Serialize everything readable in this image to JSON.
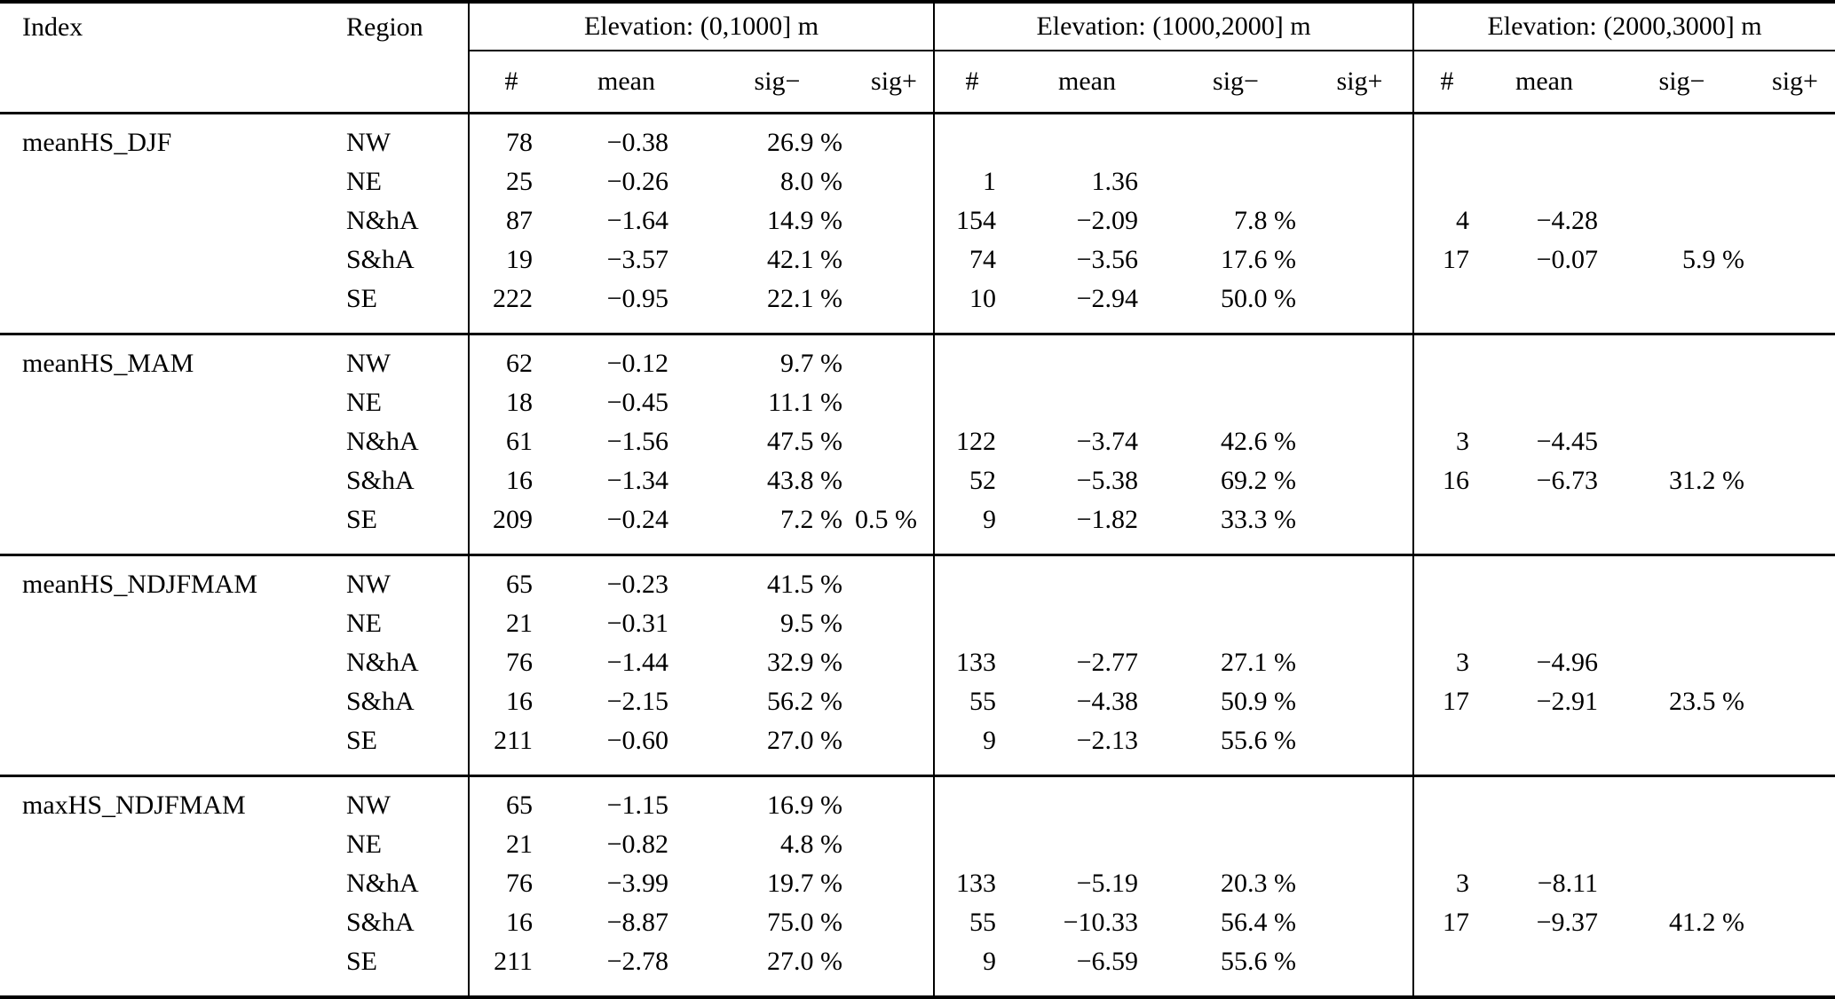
{
  "colors": {
    "background": "#ffffff",
    "text": "#000000",
    "rules": "#000000"
  },
  "table": {
    "headers": {
      "index": "Index",
      "region": "Region",
      "elevation_bands": [
        "Elevation: (0,1000] m",
        "Elevation: (1000,2000] m",
        "Elevation: (2000,3000] m"
      ],
      "sub": [
        "#",
        "mean",
        "sig−",
        "sig+"
      ]
    },
    "groups": [
      {
        "index": "meanHS_DJF",
        "rows": [
          {
            "region": "NW",
            "bands": [
              [
                "78",
                "−0.38",
                "26.9 %",
                ""
              ],
              [
                "",
                "",
                "",
                ""
              ],
              [
                "",
                "",
                "",
                ""
              ]
            ]
          },
          {
            "region": "NE",
            "bands": [
              [
                "25",
                "−0.26",
                "8.0 %",
                ""
              ],
              [
                "1",
                "1.36",
                "",
                ""
              ],
              [
                "",
                "",
                "",
                ""
              ]
            ]
          },
          {
            "region": "N&hA",
            "bands": [
              [
                "87",
                "−1.64",
                "14.9 %",
                ""
              ],
              [
                "154",
                "−2.09",
                "7.8 %",
                ""
              ],
              [
                "4",
                "−4.28",
                "",
                ""
              ]
            ]
          },
          {
            "region": "S&hA",
            "bands": [
              [
                "19",
                "−3.57",
                "42.1 %",
                ""
              ],
              [
                "74",
                "−3.56",
                "17.6 %",
                ""
              ],
              [
                "17",
                "−0.07",
                "5.9 %",
                ""
              ]
            ]
          },
          {
            "region": "SE",
            "bands": [
              [
                "222",
                "−0.95",
                "22.1 %",
                ""
              ],
              [
                "10",
                "−2.94",
                "50.0 %",
                ""
              ],
              [
                "",
                "",
                "",
                ""
              ]
            ]
          }
        ]
      },
      {
        "index": "meanHS_MAM",
        "rows": [
          {
            "region": "NW",
            "bands": [
              [
                "62",
                "−0.12",
                "9.7 %",
                ""
              ],
              [
                "",
                "",
                "",
                ""
              ],
              [
                "",
                "",
                "",
                ""
              ]
            ]
          },
          {
            "region": "NE",
            "bands": [
              [
                "18",
                "−0.45",
                "11.1 %",
                ""
              ],
              [
                "",
                "",
                "",
                ""
              ],
              [
                "",
                "",
                "",
                ""
              ]
            ]
          },
          {
            "region": "N&hA",
            "bands": [
              [
                "61",
                "−1.56",
                "47.5 %",
                ""
              ],
              [
                "122",
                "−3.74",
                "42.6 %",
                ""
              ],
              [
                "3",
                "−4.45",
                "",
                ""
              ]
            ]
          },
          {
            "region": "S&hA",
            "bands": [
              [
                "16",
                "−1.34",
                "43.8 %",
                ""
              ],
              [
                "52",
                "−5.38",
                "69.2 %",
                ""
              ],
              [
                "16",
                "−6.73",
                "31.2 %",
                ""
              ]
            ]
          },
          {
            "region": "SE",
            "bands": [
              [
                "209",
                "−0.24",
                "7.2 %",
                "0.5 %"
              ],
              [
                "9",
                "−1.82",
                "33.3 %",
                ""
              ],
              [
                "",
                "",
                "",
                ""
              ]
            ]
          }
        ]
      },
      {
        "index": "meanHS_NDJFMAM",
        "rows": [
          {
            "region": "NW",
            "bands": [
              [
                "65",
                "−0.23",
                "41.5 %",
                ""
              ],
              [
                "",
                "",
                "",
                ""
              ],
              [
                "",
                "",
                "",
                ""
              ]
            ]
          },
          {
            "region": "NE",
            "bands": [
              [
                "21",
                "−0.31",
                "9.5 %",
                ""
              ],
              [
                "",
                "",
                "",
                ""
              ],
              [
                "",
                "",
                "",
                ""
              ]
            ]
          },
          {
            "region": "N&hA",
            "bands": [
              [
                "76",
                "−1.44",
                "32.9 %",
                ""
              ],
              [
                "133",
                "−2.77",
                "27.1 %",
                ""
              ],
              [
                "3",
                "−4.96",
                "",
                ""
              ]
            ]
          },
          {
            "region": "S&hA",
            "bands": [
              [
                "16",
                "−2.15",
                "56.2 %",
                ""
              ],
              [
                "55",
                "−4.38",
                "50.9 %",
                ""
              ],
              [
                "17",
                "−2.91",
                "23.5 %",
                ""
              ]
            ]
          },
          {
            "region": "SE",
            "bands": [
              [
                "211",
                "−0.60",
                "27.0 %",
                ""
              ],
              [
                "9",
                "−2.13",
                "55.6 %",
                ""
              ],
              [
                "",
                "",
                "",
                ""
              ]
            ]
          }
        ]
      },
      {
        "index": "maxHS_NDJFMAM",
        "rows": [
          {
            "region": "NW",
            "bands": [
              [
                "65",
                "−1.15",
                "16.9 %",
                ""
              ],
              [
                "",
                "",
                "",
                ""
              ],
              [
                "",
                "",
                "",
                ""
              ]
            ]
          },
          {
            "region": "NE",
            "bands": [
              [
                "21",
                "−0.82",
                "4.8 %",
                ""
              ],
              [
                "",
                "",
                "",
                ""
              ],
              [
                "",
                "",
                "",
                ""
              ]
            ]
          },
          {
            "region": "N&hA",
            "bands": [
              [
                "76",
                "−3.99",
                "19.7 %",
                ""
              ],
              [
                "133",
                "−5.19",
                "20.3 %",
                ""
              ],
              [
                "3",
                "−8.11",
                "",
                ""
              ]
            ]
          },
          {
            "region": "S&hA",
            "bands": [
              [
                "16",
                "−8.87",
                "75.0 %",
                ""
              ],
              [
                "55",
                "−10.33",
                "56.4 %",
                ""
              ],
              [
                "17",
                "−9.37",
                "41.2 %",
                ""
              ]
            ]
          },
          {
            "region": "SE",
            "bands": [
              [
                "211",
                "−2.78",
                "27.0 %",
                ""
              ],
              [
                "9",
                "−6.59",
                "55.6 %",
                ""
              ],
              [
                "",
                "",
                "",
                ""
              ]
            ]
          }
        ]
      }
    ]
  }
}
